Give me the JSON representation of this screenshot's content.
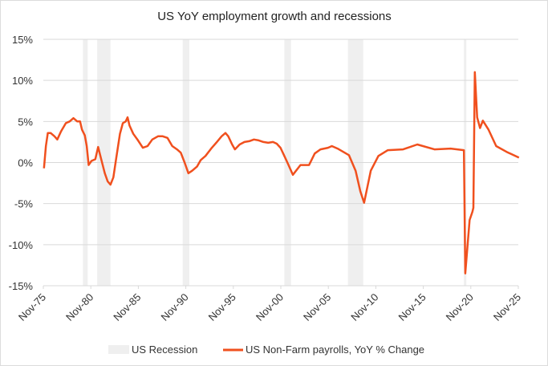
{
  "chart_data": {
    "type": "line",
    "title": "US YoY employment growth and recessions",
    "xlabel": "",
    "ylabel": "",
    "xlim": [
      1975.83,
      2025.83
    ],
    "ylim": [
      -15,
      15
    ],
    "grid": true,
    "legend_position": "bottom",
    "x_tick_labels": [
      "Nov-75",
      "Nov-80",
      "Nov-85",
      "Nov-90",
      "Nov-95",
      "Nov-00",
      "Nov-05",
      "Nov-10",
      "Nov-15",
      "Nov-20",
      "Nov-25"
    ],
    "y_tick_labels": [
      "15%",
      "10%",
      "5%",
      "0%",
      "-5%",
      "-10%",
      "-15%"
    ],
    "y_ticks": [
      15,
      10,
      5,
      0,
      -5,
      -10,
      -15
    ],
    "colors": {
      "line": "#f0501e",
      "recession": "#efefef",
      "grid": "#d9d9d9"
    },
    "recessions": {
      "name": "US Recession",
      "periods": [
        [
          1980.0,
          1980.5
        ],
        [
          1981.5,
          1982.9
        ],
        [
          1990.5,
          1991.2
        ],
        [
          2001.2,
          2001.9
        ],
        [
          2007.9,
          2009.5
        ],
        [
          2020.1,
          2020.3
        ]
      ]
    },
    "series": [
      {
        "name": "US Non-Farm payrolls, YoY % Change",
        "x": [
          1975.9,
          1976.1,
          1976.3,
          1976.6,
          1977.0,
          1977.3,
          1977.7,
          1978.2,
          1978.6,
          1979.0,
          1979.4,
          1979.7,
          1979.9,
          1980.2,
          1980.4,
          1980.6,
          1980.9,
          1981.3,
          1981.6,
          1981.9,
          1982.3,
          1982.6,
          1982.9,
          1983.2,
          1983.5,
          1983.9,
          1984.2,
          1984.5,
          1984.7,
          1984.9,
          1985.3,
          1985.8,
          1986.3,
          1986.8,
          1987.3,
          1987.9,
          1988.4,
          1988.9,
          1989.4,
          1989.9,
          1990.3,
          1990.7,
          1991.1,
          1991.5,
          1992.0,
          1992.4,
          1992.9,
          1993.5,
          1994.1,
          1994.6,
          1995.0,
          1995.3,
          1995.7,
          1996.0,
          1996.5,
          1997.0,
          1997.5,
          1998.0,
          1998.5,
          1999.0,
          1999.5,
          2000.0,
          2000.4,
          2000.8,
          2001.2,
          2001.6,
          2002.1,
          2002.9,
          2003.8,
          2004.4,
          2005.0,
          2005.8,
          2006.2,
          2006.8,
          2007.4,
          2008.0,
          2008.7,
          2009.2,
          2009.6,
          2010.3,
          2011.1,
          2012.1,
          2013.7,
          2015.2,
          2017.0,
          2018.7,
          2020.1,
          2020.25,
          2020.7,
          2021.0,
          2021.1,
          2021.25,
          2021.5,
          2021.8,
          2022.1,
          2022.7,
          2023.5,
          2024.6,
          2025.9
        ],
        "values": [
          -0.7,
          2.0,
          3.6,
          3.6,
          3.2,
          2.8,
          3.8,
          4.8,
          5.0,
          5.4,
          5.0,
          5.0,
          4.0,
          3.3,
          2.0,
          -0.3,
          0.2,
          0.4,
          1.9,
          0.5,
          -1.3,
          -2.3,
          -2.7,
          -1.8,
          0.5,
          3.5,
          4.8,
          5.0,
          5.5,
          4.5,
          3.5,
          2.7,
          1.8,
          2.0,
          2.8,
          3.2,
          3.2,
          3.0,
          2.0,
          1.6,
          1.2,
          0.0,
          -1.3,
          -1.0,
          -0.5,
          0.3,
          0.8,
          1.7,
          2.5,
          3.2,
          3.6,
          3.2,
          2.2,
          1.6,
          2.2,
          2.5,
          2.6,
          2.8,
          2.7,
          2.5,
          2.4,
          2.5,
          2.3,
          1.8,
          0.8,
          -0.2,
          -1.5,
          -0.3,
          -0.3,
          1.1,
          1.6,
          1.8,
          2.0,
          1.7,
          1.3,
          0.9,
          -1.0,
          -3.5,
          -4.9,
          -1.0,
          0.8,
          1.5,
          1.6,
          2.2,
          1.6,
          1.7,
          1.5,
          -13.5,
          -7.0,
          -6.0,
          -5.5,
          11.0,
          5.5,
          4.2,
          5.1,
          4.0,
          2.0,
          1.3,
          0.6
        ]
      }
    ]
  }
}
